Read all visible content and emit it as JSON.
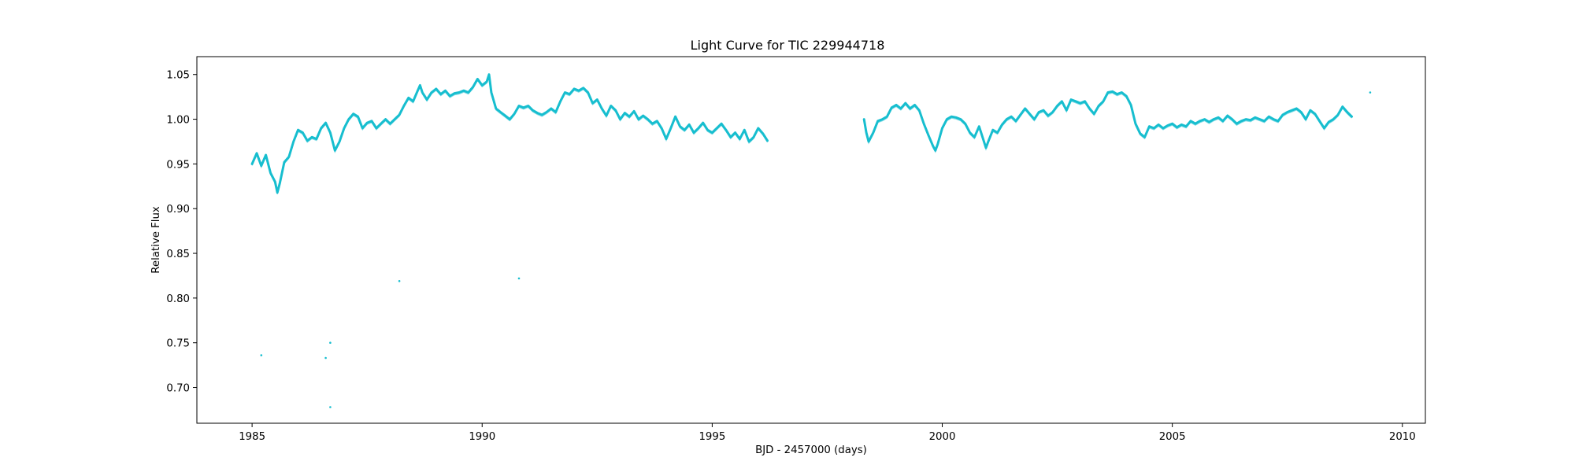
{
  "chart_data": {
    "type": "scatter",
    "title": "Light Curve for TIC 229944718",
    "xlabel": "BJD - 2457000 (days)",
    "ylabel": "Relative Flux",
    "xlim": [
      1983.8,
      2010.5
    ],
    "ylim": [
      0.66,
      1.07
    ],
    "xticks": [
      1985,
      1990,
      1995,
      2000,
      2005,
      2010
    ],
    "xtick_labels": [
      "1985",
      "1990",
      "1995",
      "2000",
      "2005",
      "2010"
    ],
    "yticks": [
      0.7,
      0.75,
      0.8,
      0.85,
      0.9,
      0.95,
      1.0,
      1.05
    ],
    "ytick_labels": [
      "0.70",
      "0.75",
      "0.80",
      "0.85",
      "0.90",
      "0.95",
      "1.00",
      "1.05"
    ],
    "grid": false,
    "series": [
      {
        "color": "#17becf",
        "segments": [
          [
            [
              1985.0,
              0.95
            ],
            [
              1985.1,
              0.962
            ],
            [
              1985.2,
              0.948
            ],
            [
              1985.3,
              0.96
            ],
            [
              1985.4,
              0.94
            ],
            [
              1985.5,
              0.93
            ],
            [
              1985.55,
              0.918
            ],
            [
              1985.6,
              0.928
            ],
            [
              1985.7,
              0.952
            ],
            [
              1985.8,
              0.958
            ],
            [
              1985.9,
              0.975
            ],
            [
              1986.0,
              0.988
            ],
            [
              1986.1,
              0.985
            ],
            [
              1986.2,
              0.976
            ],
            [
              1986.3,
              0.98
            ],
            [
              1986.4,
              0.978
            ],
            [
              1986.5,
              0.99
            ],
            [
              1986.6,
              0.996
            ],
            [
              1986.7,
              0.985
            ],
            [
              1986.8,
              0.965
            ],
            [
              1986.9,
              0.975
            ],
            [
              1987.0,
              0.99
            ],
            [
              1987.1,
              1.0
            ],
            [
              1987.2,
              1.006
            ],
            [
              1987.3,
              1.003
            ],
            [
              1987.4,
              0.99
            ],
            [
              1987.5,
              0.996
            ],
            [
              1987.6,
              0.998
            ],
            [
              1987.7,
              0.99
            ],
            [
              1987.8,
              0.995
            ],
            [
              1987.9,
              1.0
            ],
            [
              1988.0,
              0.995
            ],
            [
              1988.1,
              1.0
            ],
            [
              1988.2,
              1.005
            ],
            [
              1988.3,
              1.015
            ],
            [
              1988.4,
              1.024
            ],
            [
              1988.5,
              1.02
            ],
            [
              1988.6,
              1.032
            ],
            [
              1988.65,
              1.038
            ],
            [
              1988.7,
              1.03
            ],
            [
              1988.8,
              1.022
            ],
            [
              1988.9,
              1.03
            ],
            [
              1989.0,
              1.034
            ],
            [
              1989.1,
              1.028
            ],
            [
              1989.2,
              1.032
            ],
            [
              1989.3,
              1.026
            ],
            [
              1989.4,
              1.029
            ],
            [
              1989.5,
              1.03
            ],
            [
              1989.6,
              1.032
            ],
            [
              1989.7,
              1.03
            ],
            [
              1989.8,
              1.036
            ],
            [
              1989.9,
              1.045
            ],
            [
              1990.0,
              1.038
            ],
            [
              1990.1,
              1.042
            ],
            [
              1990.15,
              1.05
            ],
            [
              1990.2,
              1.03
            ],
            [
              1990.3,
              1.012
            ],
            [
              1990.4,
              1.008
            ],
            [
              1990.5,
              1.004
            ],
            [
              1990.6,
              1.0
            ],
            [
              1990.7,
              1.006
            ],
            [
              1990.8,
              1.015
            ],
            [
              1990.9,
              1.013
            ],
            [
              1991.0,
              1.015
            ],
            [
              1991.1,
              1.01
            ],
            [
              1991.2,
              1.007
            ],
            [
              1991.3,
              1.005
            ],
            [
              1991.4,
              1.008
            ],
            [
              1991.5,
              1.012
            ],
            [
              1991.6,
              1.008
            ],
            [
              1991.7,
              1.02
            ],
            [
              1991.8,
              1.03
            ],
            [
              1991.9,
              1.028
            ],
            [
              1992.0,
              1.034
            ],
            [
              1992.1,
              1.032
            ],
            [
              1992.2,
              1.035
            ],
            [
              1992.3,
              1.03
            ],
            [
              1992.4,
              1.018
            ],
            [
              1992.5,
              1.022
            ],
            [
              1992.6,
              1.012
            ],
            [
              1992.7,
              1.004
            ],
            [
              1992.8,
              1.015
            ],
            [
              1992.9,
              1.01
            ],
            [
              1993.0,
              1.0
            ],
            [
              1993.1,
              1.007
            ],
            [
              1993.2,
              1.003
            ],
            [
              1993.3,
              1.009
            ],
            [
              1993.4,
              1.0
            ],
            [
              1993.5,
              1.004
            ],
            [
              1993.6,
              1.0
            ],
            [
              1993.7,
              0.995
            ],
            [
              1993.8,
              0.998
            ],
            [
              1993.9,
              0.99
            ],
            [
              1994.0,
              0.978
            ],
            [
              1994.1,
              0.99
            ],
            [
              1994.2,
              1.003
            ],
            [
              1994.3,
              0.992
            ],
            [
              1994.4,
              0.988
            ],
            [
              1994.5,
              0.994
            ],
            [
              1994.6,
              0.985
            ],
            [
              1994.7,
              0.99
            ],
            [
              1994.8,
              0.996
            ],
            [
              1994.9,
              0.988
            ],
            [
              1995.0,
              0.985
            ],
            [
              1995.1,
              0.99
            ],
            [
              1995.2,
              0.995
            ],
            [
              1995.3,
              0.988
            ],
            [
              1995.4,
              0.98
            ],
            [
              1995.5,
              0.985
            ],
            [
              1995.6,
              0.978
            ],
            [
              1995.7,
              0.988
            ],
            [
              1995.8,
              0.975
            ],
            [
              1995.9,
              0.98
            ],
            [
              1996.0,
              0.99
            ],
            [
              1996.1,
              0.984
            ],
            [
              1996.2,
              0.976
            ]
          ],
          [
            [
              1998.3,
              1.0
            ],
            [
              1998.35,
              0.985
            ],
            [
              1998.4,
              0.975
            ],
            [
              1998.5,
              0.985
            ],
            [
              1998.6,
              0.998
            ],
            [
              1998.7,
              1.0
            ],
            [
              1998.8,
              1.003
            ],
            [
              1998.9,
              1.013
            ],
            [
              1999.0,
              1.016
            ],
            [
              1999.1,
              1.012
            ],
            [
              1999.2,
              1.018
            ],
            [
              1999.3,
              1.012
            ],
            [
              1999.4,
              1.016
            ],
            [
              1999.5,
              1.01
            ],
            [
              1999.6,
              0.995
            ],
            [
              1999.7,
              0.982
            ],
            [
              1999.8,
              0.97
            ],
            [
              1999.85,
              0.965
            ],
            [
              1999.9,
              0.972
            ],
            [
              2000.0,
              0.99
            ],
            [
              2000.1,
              1.0
            ],
            [
              2000.2,
              1.003
            ],
            [
              2000.3,
              1.002
            ],
            [
              2000.4,
              1.0
            ],
            [
              2000.5,
              0.995
            ],
            [
              2000.6,
              0.985
            ],
            [
              2000.7,
              0.98
            ],
            [
              2000.8,
              0.992
            ],
            [
              2000.9,
              0.976
            ],
            [
              2000.95,
              0.968
            ],
            [
              2001.0,
              0.975
            ],
            [
              2001.1,
              0.988
            ],
            [
              2001.2,
              0.985
            ],
            [
              2001.3,
              0.994
            ],
            [
              2001.4,
              1.0
            ],
            [
              2001.5,
              1.003
            ],
            [
              2001.6,
              0.998
            ],
            [
              2001.7,
              1.005
            ],
            [
              2001.8,
              1.012
            ],
            [
              2001.9,
              1.006
            ],
            [
              2002.0,
              1.0
            ],
            [
              2002.1,
              1.008
            ],
            [
              2002.2,
              1.01
            ],
            [
              2002.3,
              1.004
            ],
            [
              2002.4,
              1.008
            ],
            [
              2002.5,
              1.015
            ],
            [
              2002.6,
              1.02
            ],
            [
              2002.7,
              1.01
            ],
            [
              2002.8,
              1.022
            ],
            [
              2002.9,
              1.02
            ],
            [
              2003.0,
              1.018
            ],
            [
              2003.1,
              1.02
            ],
            [
              2003.2,
              1.012
            ],
            [
              2003.3,
              1.006
            ],
            [
              2003.4,
              1.015
            ],
            [
              2003.5,
              1.02
            ],
            [
              2003.6,
              1.03
            ],
            [
              2003.7,
              1.031
            ],
            [
              2003.8,
              1.028
            ],
            [
              2003.9,
              1.03
            ],
            [
              2004.0,
              1.026
            ],
            [
              2004.1,
              1.016
            ],
            [
              2004.2,
              0.995
            ],
            [
              2004.3,
              0.984
            ],
            [
              2004.4,
              0.98
            ],
            [
              2004.5,
              0.992
            ],
            [
              2004.6,
              0.99
            ],
            [
              2004.7,
              0.994
            ],
            [
              2004.8,
              0.99
            ],
            [
              2004.9,
              0.993
            ],
            [
              2005.0,
              0.995
            ],
            [
              2005.1,
              0.991
            ],
            [
              2005.2,
              0.994
            ],
            [
              2005.3,
              0.992
            ],
            [
              2005.4,
              0.998
            ],
            [
              2005.5,
              0.995
            ],
            [
              2005.6,
              0.998
            ],
            [
              2005.7,
              1.0
            ],
            [
              2005.8,
              0.997
            ],
            [
              2005.9,
              1.0
            ],
            [
              2006.0,
              1.002
            ],
            [
              2006.1,
              0.998
            ],
            [
              2006.2,
              1.004
            ],
            [
              2006.3,
              1.0
            ],
            [
              2006.4,
              0.995
            ],
            [
              2006.5,
              0.998
            ],
            [
              2006.6,
              1.0
            ],
            [
              2006.7,
              0.999
            ],
            [
              2006.8,
              1.002
            ],
            [
              2006.9,
              1.0
            ],
            [
              2007.0,
              0.998
            ],
            [
              2007.1,
              1.003
            ],
            [
              2007.2,
              1.0
            ],
            [
              2007.3,
              0.998
            ],
            [
              2007.4,
              1.005
            ],
            [
              2007.5,
              1.008
            ],
            [
              2007.6,
              1.01
            ],
            [
              2007.7,
              1.012
            ],
            [
              2007.8,
              1.008
            ],
            [
              2007.9,
              1.0
            ],
            [
              2008.0,
              1.01
            ],
            [
              2008.1,
              1.006
            ],
            [
              2008.2,
              0.998
            ],
            [
              2008.3,
              0.99
            ],
            [
              2008.4,
              0.997
            ],
            [
              2008.5,
              1.0
            ],
            [
              2008.6,
              1.005
            ],
            [
              2008.7,
              1.014
            ],
            [
              2008.8,
              1.008
            ],
            [
              2008.9,
              1.003
            ]
          ]
        ],
        "outliers": [
          [
            1985.2,
            0.736
          ],
          [
            1986.6,
            0.733
          ],
          [
            1986.7,
            0.75
          ],
          [
            1986.7,
            0.678
          ],
          [
            1988.2,
            0.819
          ],
          [
            1990.8,
            0.822
          ],
          [
            2009.3,
            1.03
          ]
        ]
      }
    ]
  }
}
